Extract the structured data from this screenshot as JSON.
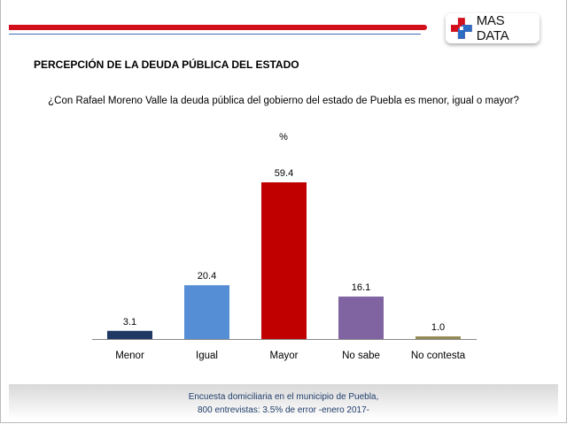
{
  "header": {
    "logo_text": "MAS DATA"
  },
  "title": "PERCEPCIÓN DE LA DEUDA PÚBLICA DEL ESTADO",
  "question": "¿Con Rafael Moreno Valle la deuda pública del gobierno del estado de Puebla es menor, igual o mayor?",
  "chart_data": {
    "type": "bar",
    "title": "%",
    "categories": [
      "Menor",
      "Igual",
      "Mayor",
      "No sabe",
      "No contesta"
    ],
    "values": [
      3.1,
      20.4,
      59.4,
      16.1,
      1.0
    ],
    "labels": [
      "3.1",
      "20.4",
      "59.4",
      "16.1",
      "1.0"
    ],
    "colors": [
      "#1f3864",
      "#558ed5",
      "#c00000",
      "#8064a2",
      "#948a54"
    ],
    "ylim": [
      0,
      60
    ],
    "grid": false
  },
  "footer": {
    "line1": "Encuesta domiciliaria en el municipio de Puebla,",
    "line2": "800 entrevistas: 3.5% de error -enero 2017-"
  }
}
